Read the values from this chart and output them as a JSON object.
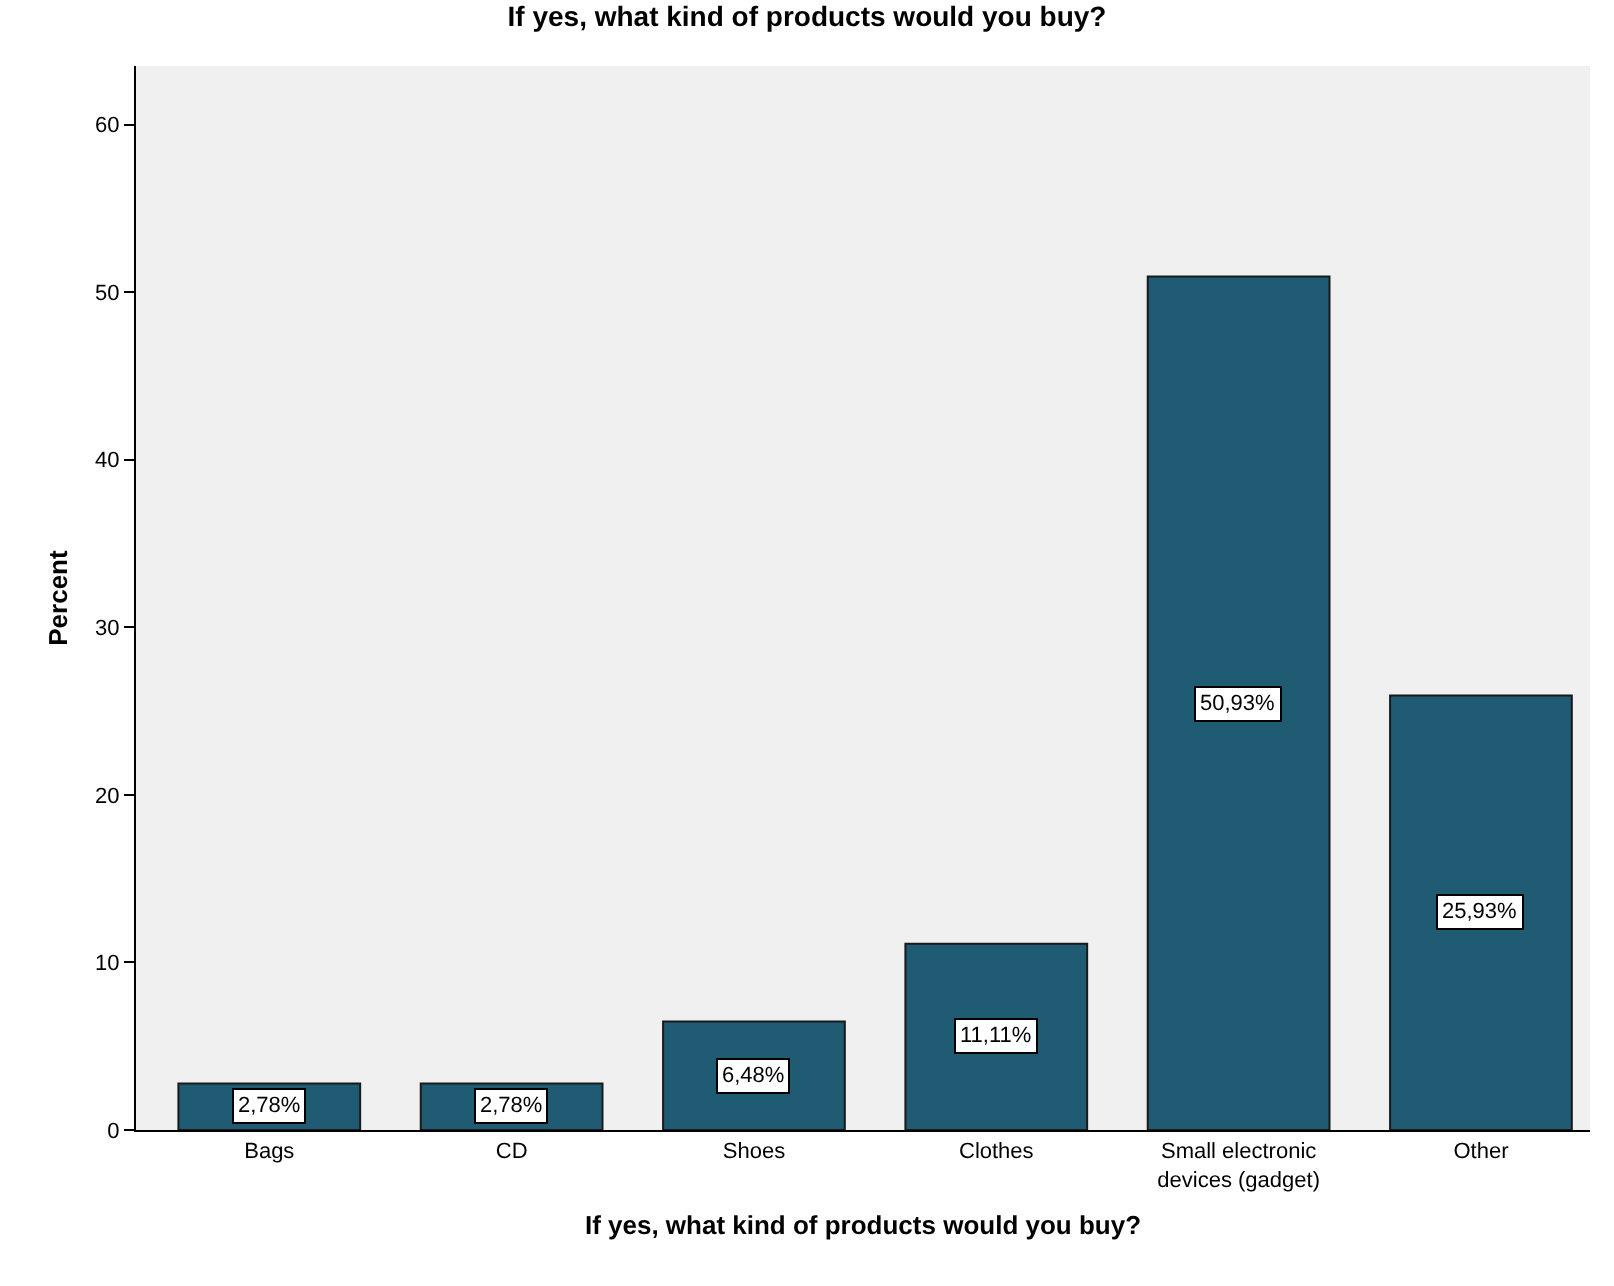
{
  "chart_data": {
    "type": "bar",
    "title": "If yes, what kind of products would you buy?",
    "xlabel": "If yes, what kind of products would you buy?",
    "ylabel": "Percent",
    "categories": [
      "Bags",
      "CD",
      "Shoes",
      "Clothes",
      "Small electronic devices (gadget)",
      "Other"
    ],
    "values": [
      2.78,
      2.78,
      6.48,
      11.11,
      50.93,
      25.93
    ],
    "value_labels": [
      "2,78%",
      "2,78%",
      "6,48%",
      "11,11%",
      "50,93%",
      "25,93%"
    ],
    "color": "#1f5b73",
    "ylim": [
      0,
      63.5
    ],
    "yticks": [
      0,
      10,
      20,
      30,
      40,
      50,
      60
    ],
    "grid": false
  }
}
